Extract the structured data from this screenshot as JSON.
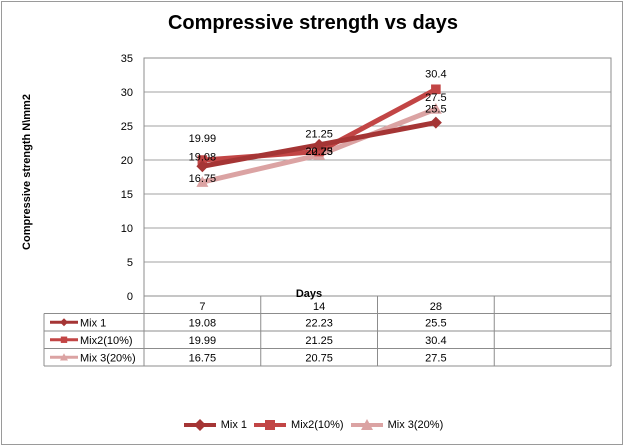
{
  "chart_data": {
    "type": "line",
    "title": "Compressive strength vs days",
    "xlabel": "Days",
    "ylabel": "Compressive strength N\\mm2",
    "categories": [
      "7",
      "14",
      "28"
    ],
    "ylim": [
      0,
      35
    ],
    "yticks": [
      "0",
      "5",
      "10",
      "15",
      "20",
      "25",
      "30",
      "35"
    ],
    "grid": true,
    "legend": "bottom",
    "series": [
      {
        "name": "Mix 1",
        "values": [
          19.08,
          22.23,
          25.5
        ],
        "labels": [
          "19.08",
          "22.23",
          "25.5"
        ],
        "color": "#a53535",
        "marker": "diamond"
      },
      {
        "name": "Mix2(10%)",
        "values": [
          19.99,
          21.25,
          30.4
        ],
        "labels": [
          "19.99",
          "21.25",
          "30.4"
        ],
        "color": "#c24545",
        "marker": "square"
      },
      {
        "name": "Mix 3(20%)",
        "values": [
          16.75,
          20.75,
          27.5
        ],
        "labels": [
          "16.75",
          "20.75",
          "27.5"
        ],
        "color": "#dba3a3",
        "marker": "triangle"
      }
    ]
  }
}
